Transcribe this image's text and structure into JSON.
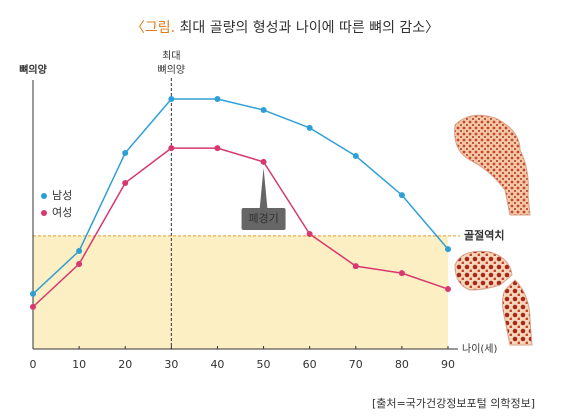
{
  "chart_data": {
    "type": "line",
    "title_label": "〈그림.",
    "title": "최대 골량의 형성과 나이에 따른 뼈의 감소〉",
    "y_label": "뼈의양",
    "x_label": "나이(세)",
    "x": [
      0,
      10,
      20,
      30,
      40,
      50,
      60,
      70,
      80,
      90
    ],
    "xlim": [
      0,
      90
    ],
    "xticks": [
      0,
      10,
      20,
      30,
      40,
      50,
      60,
      70,
      80,
      90
    ],
    "ylim": [
      0,
      100
    ],
    "series": [
      {
        "name": "남성",
        "color": "#2e9fd6",
        "values": [
          20.4,
          36.3,
          72.6,
          92.6,
          92.6,
          88.5,
          81.9,
          71.5,
          57,
          37
        ]
      },
      {
        "name": "여성",
        "color": "#d6386f",
        "values": [
          15.6,
          31.5,
          61.5,
          74.4,
          74.4,
          69.3,
          42.6,
          30.7,
          28.1,
          22.2
        ]
      }
    ],
    "threshold": {
      "label": "골절역치",
      "value": 41.9,
      "color": "#e89a2c",
      "fill": "#fcefc4"
    },
    "peak_marker": {
      "x": 30,
      "label": [
        "최대",
        "뼈의양"
      ]
    },
    "annotation": {
      "text": "폐경기",
      "x": 50,
      "series": 1
    },
    "source": "[출처=국가건강정보포털 의학정보]"
  }
}
